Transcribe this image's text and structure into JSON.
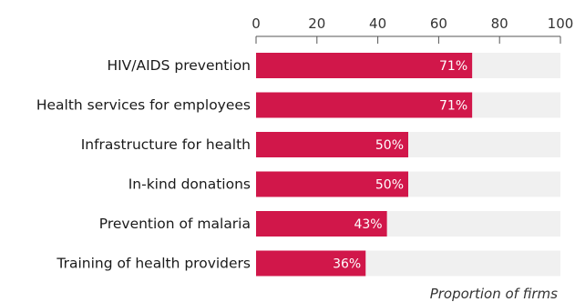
{
  "chart_data": {
    "type": "bar",
    "orientation": "horizontal",
    "categories": [
      "HIV/AIDS prevention",
      "Health services for employees",
      "Infrastructure for health",
      "In-kind donations",
      "Prevention of malaria",
      "Training of health providers"
    ],
    "values": [
      71,
      71,
      50,
      50,
      43,
      36
    ],
    "value_labels": [
      "71%",
      "71%",
      "50%",
      "50%",
      "43%",
      "36%"
    ],
    "xlim": [
      0,
      100
    ],
    "xticks": [
      0,
      20,
      40,
      60,
      80,
      100
    ],
    "xlabel": "Proportion of firms",
    "axis_position": "top",
    "bar_color": "#d1174a",
    "track_color": "#f0f0f0",
    "grid": false
  }
}
